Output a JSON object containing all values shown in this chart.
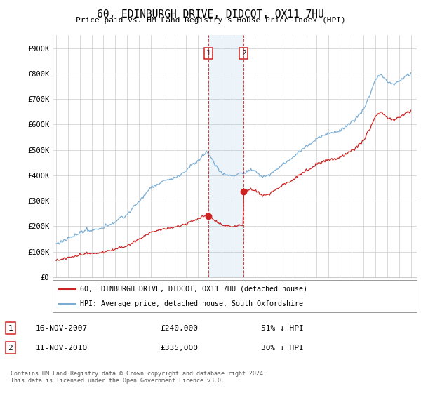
{
  "title": "60, EDINBURGH DRIVE, DIDCOT, OX11 7HU",
  "subtitle": "Price paid vs. HM Land Registry's House Price Index (HPI)",
  "legend_line1": "60, EDINBURGH DRIVE, DIDCOT, OX11 7HU (detached house)",
  "legend_line2": "HPI: Average price, detached house, South Oxfordshire",
  "transaction1_date": "16-NOV-2007",
  "transaction1_price": 240000,
  "transaction1_label": "£240,000",
  "transaction1_info": "51% ↓ HPI",
  "transaction2_date": "11-NOV-2010",
  "transaction2_price": 335000,
  "transaction2_label": "£335,000",
  "transaction2_info": "30% ↓ HPI",
  "footer": "Contains HM Land Registry data © Crown copyright and database right 2024.\nThis data is licensed under the Open Government Licence v3.0.",
  "hpi_color": "#7aadd4",
  "price_color": "#cc2222",
  "marker1_x": 2007.88,
  "marker2_x": 2010.86,
  "ylim_max": 950000,
  "xlim_start": 1994.7,
  "xlim_end": 2025.5,
  "background_color": "#ffffff",
  "grid_color": "#cccccc"
}
